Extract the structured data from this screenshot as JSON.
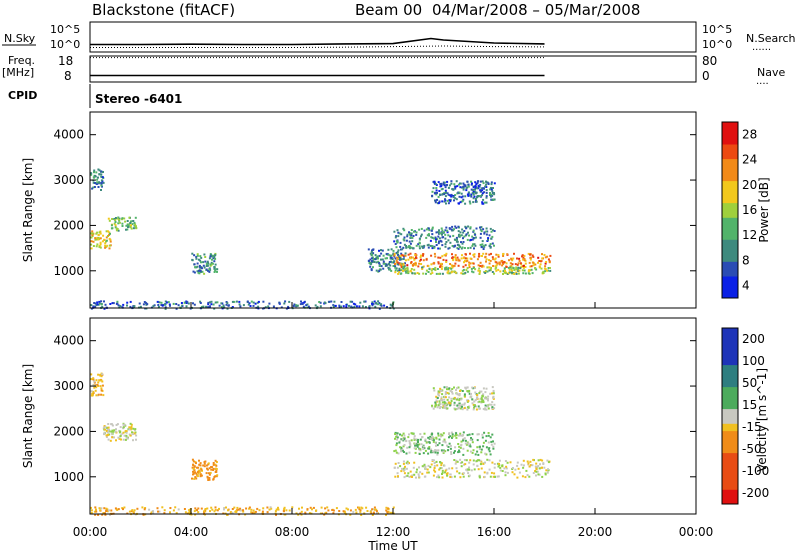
{
  "header": {
    "station": "Blackstone (fitACF)",
    "beam_label": "Beam 00",
    "date_range": "04/Mar/2008 – 05/Mar/2008"
  },
  "labels": {
    "nsky": "N.Sky",
    "nsearch": "N.Search",
    "freq": "Freq.",
    "mhz": "[MHz]",
    "nave": "Nave",
    "cpid": "CPID",
    "cpid_value": "Stereo -6401",
    "dotted_legend": "......",
    "dotted_legend_short": "...."
  },
  "chart_data": [
    {
      "type": "line",
      "panel": "noise",
      "left_ticks": [
        "10^5",
        "10^0"
      ],
      "right_ticks": [
        "10^5",
        "10^0"
      ],
      "series": [
        {
          "name": "N.Sky",
          "x_hours": [
            0,
            2,
            4,
            6,
            8,
            10,
            12,
            13.5,
            14,
            16,
            18
          ],
          "level": [
            0.25,
            0.25,
            0.26,
            0.25,
            0.25,
            0.27,
            0.28,
            0.45,
            0.4,
            0.3,
            0.27
          ]
        },
        {
          "name": "N.Search",
          "x_hours": [
            0,
            2,
            4,
            6,
            8,
            10,
            12,
            14,
            16,
            18
          ],
          "level": [
            0.15,
            0.15,
            0.15,
            0.15,
            0.15,
            0.16,
            0.18,
            0.2,
            0.18,
            0.17
          ]
        }
      ]
    },
    {
      "type": "line",
      "panel": "frequency",
      "left_ticks": [
        "18",
        "8"
      ],
      "right_ticks": [
        "80",
        "0"
      ],
      "series": [
        {
          "name": "Freq.",
          "x_hours": [
            0,
            18
          ],
          "value_mhz": [
            10.5,
            10.5
          ]
        },
        {
          "name": "Nave",
          "x_hours": [
            0,
            18
          ],
          "value": [
            75,
            75
          ]
        }
      ]
    },
    {
      "type": "heatmap",
      "panel": "power",
      "xlabel": "",
      "ylabel": "Slant Range [km]",
      "xlim": [
        0,
        24
      ],
      "ylim": [
        180,
        4500
      ],
      "yticks": [
        "1000",
        "2000",
        "3000",
        "4000"
      ],
      "colorbar": {
        "label": "Power [dB]",
        "ticks": [
          "28",
          "24",
          "20",
          "16",
          "12",
          "8",
          "4"
        ],
        "range": [
          0,
          30
        ]
      },
      "regions": [
        {
          "x": [
            0.0,
            0.5
          ],
          "y": [
            2800,
            3300
          ],
          "val": 8
        },
        {
          "x": [
            0.7,
            1.8
          ],
          "y": [
            1900,
            2200
          ],
          "val": 12
        },
        {
          "x": [
            0.0,
            0.8
          ],
          "y": [
            1500,
            1900
          ],
          "val": 18
        },
        {
          "x": [
            4.0,
            5.0
          ],
          "y": [
            950,
            1400
          ],
          "val": 9
        },
        {
          "x": [
            11.0,
            12.5
          ],
          "y": [
            1000,
            1500
          ],
          "val": 8
        },
        {
          "x": [
            12.0,
            18.2
          ],
          "y": [
            1100,
            1400
          ],
          "val": 22
        },
        {
          "x": [
            12.0,
            18.2
          ],
          "y": [
            950,
            1100
          ],
          "val": 14
        },
        {
          "x": [
            12.0,
            16.0
          ],
          "y": [
            1500,
            2000
          ],
          "val": 8
        },
        {
          "x": [
            13.5,
            16.0
          ],
          "y": [
            2500,
            3000
          ],
          "val": 6
        },
        {
          "x": [
            0.0,
            12.0
          ],
          "y": [
            180,
            350
          ],
          "val": 6
        }
      ]
    },
    {
      "type": "heatmap",
      "panel": "velocity",
      "xlabel": "Time UT",
      "ylabel": "Slant Range [km]",
      "xlim": [
        0,
        24
      ],
      "ylim": [
        180,
        4500
      ],
      "xticks": [
        "00:00",
        "04:00",
        "08:00",
        "12:00",
        "16:00",
        "20:00",
        "00:00"
      ],
      "yticks": [
        "1000",
        "2000",
        "3000",
        "4000"
      ],
      "colorbar": {
        "label": "Velocity [m s^-1]",
        "ticks": [
          "200",
          "100",
          "50",
          "15",
          "-15",
          "-50",
          "-100",
          "-200"
        ],
        "range": [
          -250,
          250
        ]
      },
      "regions": [
        {
          "x": [
            0.0,
            0.5
          ],
          "y": [
            2800,
            3300
          ],
          "val": -40
        },
        {
          "x": [
            0.5,
            1.8
          ],
          "y": [
            1800,
            2200
          ],
          "val": 0
        },
        {
          "x": [
            4.0,
            5.0
          ],
          "y": [
            950,
            1400
          ],
          "val": -70
        },
        {
          "x": [
            12.0,
            18.2
          ],
          "y": [
            1000,
            1400
          ],
          "val": 0
        },
        {
          "x": [
            12.0,
            16.0
          ],
          "y": [
            1500,
            2000
          ],
          "val": 25
        },
        {
          "x": [
            13.5,
            16.0
          ],
          "y": [
            2500,
            3000
          ],
          "val": 5
        },
        {
          "x": [
            0.0,
            12.0
          ],
          "y": [
            180,
            350
          ],
          "val": -40
        }
      ]
    }
  ]
}
